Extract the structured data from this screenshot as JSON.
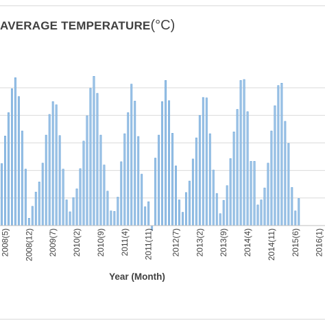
{
  "chart_data": {
    "type": "bar",
    "title": "AVERAGE TEMPERATURE",
    "title_unit": "(°C)",
    "xlabel": "Year (Month)",
    "ylabel": "",
    "ylim": [
      0,
      34
    ],
    "grid": true,
    "bar_color": "#9dc3e6",
    "bar_edge_color": "#5b9bd5",
    "gridline_color": "#d9d9d9",
    "tick_labels": [
      {
        "label": "2008(5)",
        "index": 1
      },
      {
        "label": "2008(12)",
        "index": 8
      },
      {
        "label": "2009(7)",
        "index": 15
      },
      {
        "label": "2010(2)",
        "index": 22
      },
      {
        "label": "2010(9)",
        "index": 29
      },
      {
        "label": "2011(4)",
        "index": 36
      },
      {
        "label": "2011(11)",
        "index": 43
      },
      {
        "label": "2012(7)",
        "index": 51
      },
      {
        "label": "2013(2)",
        "index": 58
      },
      {
        "label": "2013(9)",
        "index": 65
      },
      {
        "label": "2014(4)",
        "index": 72
      },
      {
        "label": "2014(11)",
        "index": 79
      },
      {
        "label": "2015(6)",
        "index": 86
      },
      {
        "label": "2016(1)",
        "index": 93
      }
    ],
    "values": [
      13.5,
      19.5,
      24.6,
      29.8,
      32.2,
      28.1,
      20.6,
      12.3,
      1.6,
      4.2,
      7.3,
      9.5,
      13.6,
      19.7,
      24.2,
      27.0,
      26.3,
      19.6,
      12.3,
      5.6,
      3.0,
      6.1,
      8.0,
      12.4,
      18.4,
      23.9,
      29.9,
      32.5,
      28.8,
      19.7,
      13.2,
      7.5,
      3.2,
      3.1,
      6.2,
      13.9,
      20.0,
      24.6,
      30.8,
      27.1,
      19.4,
      11.2,
      4.1,
      5.2,
      -1.0,
      14.7,
      19.7,
      27.0,
      31.6,
      27.2,
      20.1,
      13.0,
      5.6,
      2.9,
      7.2,
      9.7,
      14.5,
      19.1,
      24.0,
      27.9,
      27.8,
      20.0,
      12.1,
      7.0,
      2.6,
      5.5,
      8.7,
      14.6,
      20.4,
      25.3,
      31.6,
      31.8,
      24.8,
      14.0,
      14.0,
      4.5,
      5.6,
      8.2,
      13.6,
      20.6,
      26.1,
      30.5,
      31.0,
      22.7,
      17.9,
      8.3,
      3.2,
      5.9
    ]
  }
}
